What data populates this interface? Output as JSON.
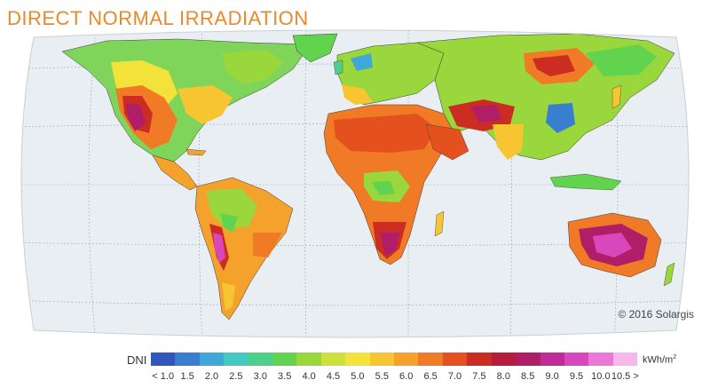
{
  "title": "DIRECT NORMAL IRRADIATION",
  "copyright": "© 2016 Solargis",
  "legend": {
    "label": "DNI",
    "unit_base": "kWh/m",
    "unit_exp": "2",
    "ticks": [
      "< 1.0",
      "1.5",
      "2.0",
      "2.5",
      "3.0",
      "3.5",
      "4.0",
      "4.5",
      "5.0",
      "5.5",
      "6.0",
      "6.5",
      "7.0",
      "7.5",
      "8.0",
      "8.5",
      "9.0",
      "9.5",
      "10.0",
      "10.5 >"
    ],
    "colors": [
      "#2f56b8",
      "#3a7ed0",
      "#3fa8d6",
      "#43c8c2",
      "#4ed08a",
      "#62d34e",
      "#9ad73d",
      "#cfe03a",
      "#f3e23a",
      "#f6c531",
      "#f5a22c",
      "#f07a26",
      "#e4501e",
      "#cc2d22",
      "#b61c3b",
      "#b01e67",
      "#c22a96",
      "#d848bc",
      "#ea78d6",
      "#f6b8ea"
    ]
  },
  "map_colors": {
    "ocean": "#e9eef3",
    "grid": "#9aa4ad",
    "border": "#3a3a3a"
  }
}
